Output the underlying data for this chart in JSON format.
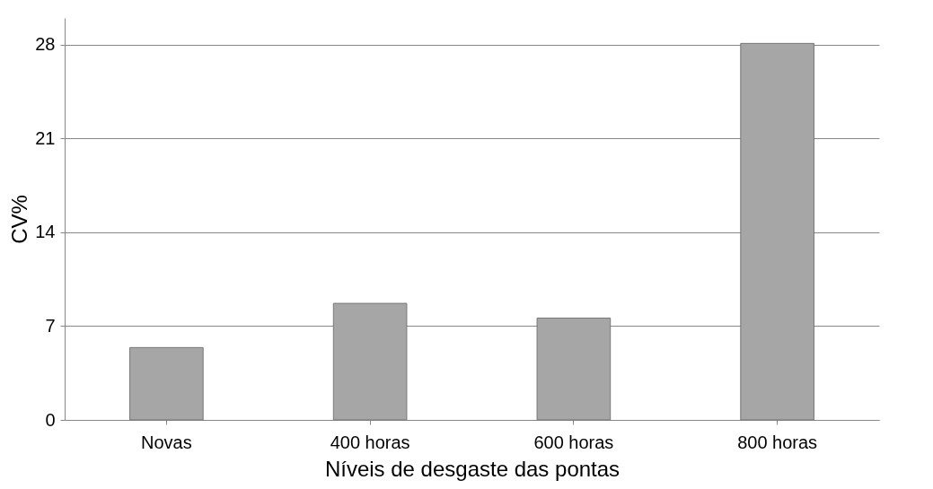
{
  "chart_data": {
    "type": "bar",
    "xlabel": "Níveis de desgaste das pontas",
    "ylabel": "CV%",
    "categories": [
      "Novas",
      "400 horas",
      "600 horas",
      "800 horas"
    ],
    "values": [
      5.4,
      8.7,
      7.6,
      28.1
    ],
    "color": "#a6a6a6",
    "ylim": [
      0,
      30
    ],
    "yticks": [
      0,
      7,
      14,
      21,
      28
    ],
    "grid": "y"
  }
}
